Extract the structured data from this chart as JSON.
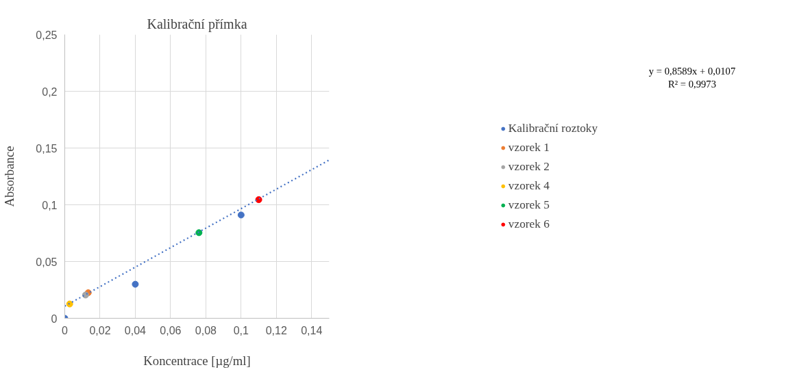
{
  "chart_data": {
    "type": "scatter",
    "title": "Kalibrační přímka",
    "xlabel": "Koncentrace [µg/ml]",
    "ylabel": "Absorbance",
    "series": [
      {
        "name": "Kalibrační roztoky",
        "color": "#4472c4",
        "x": [
          0,
          0.04,
          0.1
        ],
        "values": [
          0,
          0.03,
          0.091
        ]
      },
      {
        "name": "vzorek 1",
        "color": "#ed7d31",
        "x": [
          0.0133
        ],
        "values": [
          0.0225
        ]
      },
      {
        "name": "vzorek 2",
        "color": "#a5a5a5",
        "x": [
          0.0118
        ],
        "values": [
          0.0205
        ]
      },
      {
        "name": "vzorek 4",
        "color": "#ffc000",
        "x": [
          0.0028
        ],
        "values": [
          0.0126
        ]
      },
      {
        "name": "vzorek 5",
        "color": "#00b050",
        "x": [
          0.0761
        ],
        "values": [
          0.0754
        ]
      },
      {
        "name": "vzorek 6",
        "color": "#ff0000",
        "x": [
          0.11
        ],
        "values": [
          0.1045
        ]
      },
      {
        "type": "line",
        "marker": "none",
        "line_style": "dotted",
        "color": "#4472c4",
        "x": [
          0,
          0.15
        ],
        "values": [
          0.0107,
          0.1395
        ]
      }
    ],
    "marker": "circle",
    "xlim": [
      0,
      0.15
    ],
    "ylim": [
      0,
      0.25
    ],
    "xticks": [
      0,
      {
        "value": 0.02,
        "label": "0,02"
      },
      {
        "value": 0.04,
        "label": "0,04"
      },
      {
        "value": 0.06,
        "label": "0,06"
      },
      {
        "value": 0.08,
        "label": "0,08"
      },
      {
        "value": 0.1,
        "label": "0,1"
      },
      {
        "value": 0.12,
        "label": "0,12"
      },
      {
        "value": 0.14,
        "label": "0,14"
      }
    ],
    "yticks": [
      0,
      {
        "value": 0.05,
        "label": "0,05"
      },
      {
        "value": 0.1,
        "label": "0,1"
      },
      {
        "value": 0.15,
        "label": "0,15"
      },
      {
        "value": 0.2,
        "label": "0,2"
      },
      {
        "value": 0.25,
        "label": "0,25"
      }
    ],
    "grid": true,
    "legend": "right",
    "annotations": [
      "y = 0,8589x + 0,0107",
      "R² = 0,9973"
    ]
  }
}
